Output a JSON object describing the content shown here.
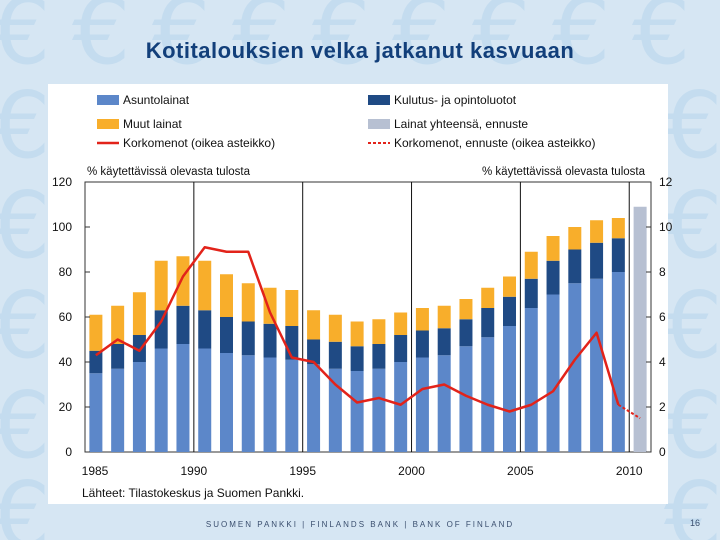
{
  "title": "Kotitalouksien velka jatkanut kasvuaan",
  "footer": "SUOMEN PANKKI | FINLANDS BANK | BANK OF FINLAND",
  "page_number": "16",
  "source_note": "Lähteet: Tilastokeskus ja Suomen Pankki.",
  "colors": {
    "asuntolainat": "#5c87c9",
    "kulutus": "#1f4a84",
    "muut": "#f8ae2b",
    "ennuste": "#b7c0d2",
    "korko": "#e2231a"
  },
  "chart_data": {
    "type": "bar",
    "title": "Kotitalouksien velka jatkanut kasvuaan",
    "y_left_label": "% käytettävissä olevasta tulosta",
    "y_right_label": "% käytettävissä olevasta tulosta",
    "ylim_left": [
      0,
      120
    ],
    "ylim_right": [
      0,
      12
    ],
    "y_left_ticks": [
      "0",
      "20",
      "40",
      "60",
      "80",
      "100",
      "120"
    ],
    "y_right_ticks": [
      "0",
      "2",
      "4",
      "6",
      "8",
      "10",
      "12"
    ],
    "x_tick_labels": [
      "1985",
      "1990",
      "1995",
      "2000",
      "2005",
      "2010"
    ],
    "categories": [
      1985,
      1986,
      1987,
      1988,
      1989,
      1990,
      1991,
      1992,
      1993,
      1994,
      1995,
      1996,
      1997,
      1998,
      1999,
      2000,
      2001,
      2002,
      2003,
      2004,
      2005,
      2006,
      2007,
      2008,
      2009,
      2010
    ],
    "legend": [
      {
        "label": "Asuntolainat",
        "key": "asuntolainat",
        "kind": "bar"
      },
      {
        "label": "Kulutus- ja opintoluotot",
        "key": "kulutus",
        "kind": "bar"
      },
      {
        "label": "Muut lainat",
        "key": "muut",
        "kind": "bar"
      },
      {
        "label": "Lainat yhteensä, ennuste",
        "key": "ennuste",
        "kind": "bar"
      },
      {
        "label": "Korkomenot (oikea asteikko)",
        "key": "korko",
        "kind": "line"
      },
      {
        "label": "Korkomenot, ennuste (oikea asteikko)",
        "key": "korko",
        "kind": "dashed"
      }
    ],
    "series": [
      {
        "name": "Asuntolainat",
        "key": "asuntolainat",
        "values": [
          35,
          37,
          40,
          46,
          48,
          46,
          44,
          43,
          42,
          41,
          39,
          37,
          36,
          37,
          40,
          42,
          43,
          47,
          51,
          56,
          64,
          70,
          75,
          77,
          80,
          null
        ]
      },
      {
        "name": "Kulutus- ja opintoluotot",
        "key": "kulutus",
        "values": [
          10,
          11,
          12,
          17,
          17,
          17,
          16,
          15,
          15,
          15,
          11,
          12,
          11,
          11,
          12,
          12,
          12,
          12,
          13,
          13,
          13,
          15,
          15,
          16,
          15,
          null
        ]
      },
      {
        "name": "Muut lainat",
        "key": "muut",
        "values": [
          16,
          17,
          19,
          22,
          22,
          22,
          19,
          17,
          16,
          16,
          13,
          12,
          11,
          11,
          10,
          10,
          10,
          9,
          9,
          9,
          12,
          11,
          10,
          10,
          9,
          null
        ]
      },
      {
        "name": "Lainat yhteensä, ennuste",
        "key": "ennuste",
        "values": [
          null,
          null,
          null,
          null,
          null,
          null,
          null,
          null,
          null,
          null,
          null,
          null,
          null,
          null,
          null,
          null,
          null,
          null,
          null,
          null,
          null,
          null,
          null,
          null,
          null,
          109
        ]
      }
    ],
    "line": {
      "name": "Korkomenot (oikea asteikko)",
      "axis": "right",
      "x": [
        1985,
        1986,
        1987,
        1988,
        1989,
        1990,
        1991,
        1992,
        1993,
        1994,
        1995,
        1996,
        1997,
        1998,
        1999,
        2000,
        2001,
        2002,
        2003,
        2004,
        2005,
        2006,
        2007,
        2008,
        2009
      ],
      "values": [
        4.3,
        5.0,
        4.5,
        5.8,
        7.8,
        9.1,
        8.9,
        8.9,
        6.2,
        4.2,
        4.0,
        3.0,
        2.2,
        2.4,
        2.1,
        2.8,
        3.0,
        2.5,
        2.1,
        1.8,
        2.1,
        2.7,
        4.1,
        5.3,
        2.1
      ]
    },
    "forecast_line": {
      "name": "Korkomenot, ennuste (oikea asteikko)",
      "axis": "right",
      "x": [
        2009,
        2010
      ],
      "values": [
        2.1,
        1.5
      ]
    }
  }
}
